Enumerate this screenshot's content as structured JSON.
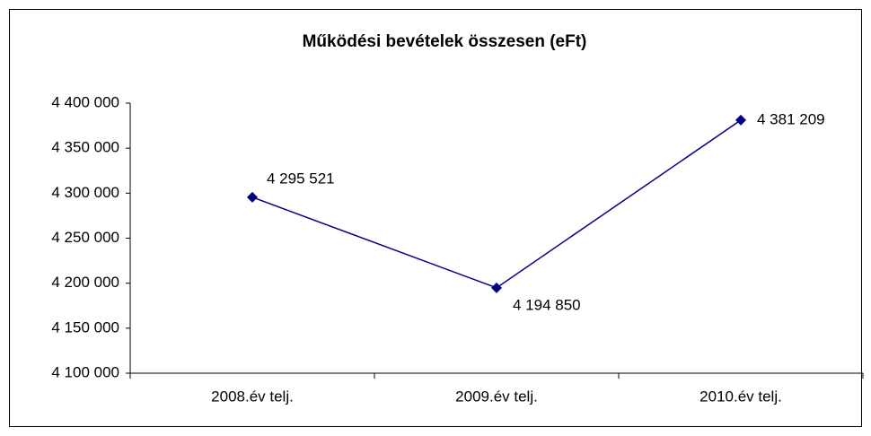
{
  "chart_data": {
    "type": "line",
    "title": "Működési bevételek összesen (eFt)",
    "categories": [
      "2008.év telj.",
      "2009.év telj.",
      "2010.év telj."
    ],
    "series": [
      {
        "name": "Működési bevételek összesen",
        "color": "#000080",
        "values": [
          4295521,
          4194850,
          4381209
        ],
        "value_labels": [
          "4 295 521",
          "4 194 850",
          "4 381 209"
        ]
      }
    ],
    "ylim": [
      4100000,
      4400000
    ],
    "yticks": [
      {
        "value": 4100000,
        "label": "4 100 000"
      },
      {
        "value": 4150000,
        "label": "4 150 000"
      },
      {
        "value": 4200000,
        "label": "4 200 000"
      },
      {
        "value": 4250000,
        "label": "4 250 000"
      },
      {
        "value": 4300000,
        "label": "4 300 000"
      },
      {
        "value": 4350000,
        "label": "4 350 000"
      },
      {
        "value": 4400000,
        "label": "4 400 000"
      }
    ],
    "grid": false,
    "legend": false
  }
}
